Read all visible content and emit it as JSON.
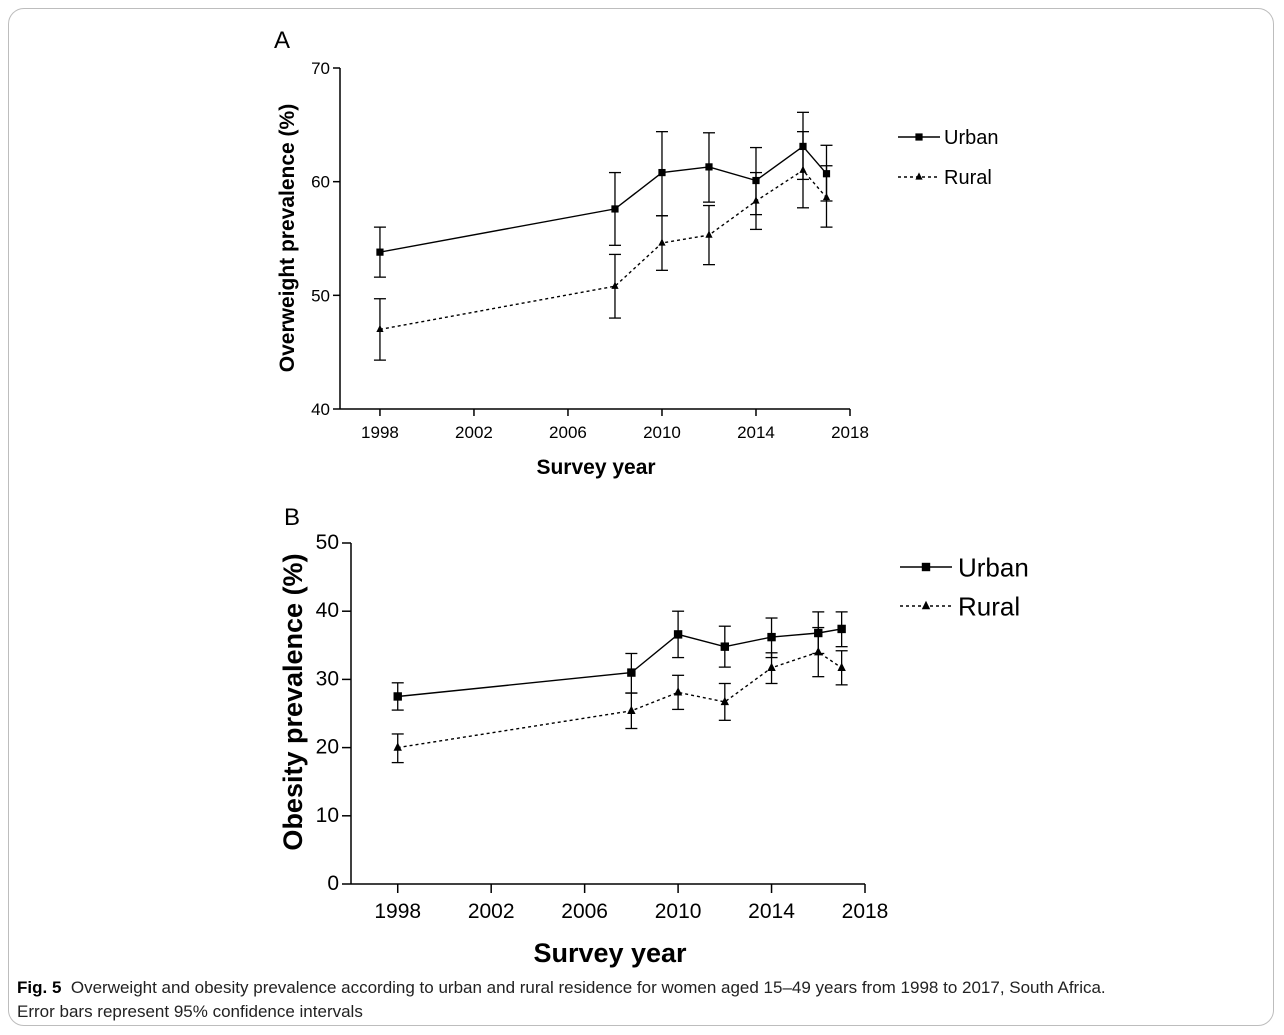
{
  "caption": {
    "label": "Fig. 5",
    "line1": "Overweight and obesity prevalence according to urban and rural residence for women aged 15–49 years from 1998 to 2017, South Africa.",
    "line2": "Error bars represent 95% confidence intervals"
  },
  "colors": {
    "line": "#000000",
    "frame": "#bdbdbd"
  },
  "chart_data": [
    {
      "type": "line",
      "panel": "A",
      "xlabel": "Survey year",
      "ylabel": "Overweight prevalence (%)",
      "xlim": [
        1996,
        2018
      ],
      "ylim": [
        40,
        70
      ],
      "xticks": [
        1998,
        2002,
        2006,
        2010,
        2014,
        2018
      ],
      "yticks": [
        40,
        50,
        60,
        70
      ],
      "legend_position": "right",
      "series": [
        {
          "name": "Urban",
          "marker": "square",
          "style": "solid",
          "x": [
            1998,
            2008,
            2010,
            2012,
            2014,
            2016,
            2017
          ],
          "y": [
            53.8,
            57.6,
            60.8,
            61.3,
            60.1,
            63.1,
            60.7
          ],
          "lower": [
            51.6,
            54.4,
            57.0,
            58.2,
            57.1,
            60.2,
            58.3
          ],
          "upper": [
            56.0,
            60.8,
            64.4,
            64.3,
            63.0,
            66.1,
            63.2
          ]
        },
        {
          "name": "Rural",
          "marker": "triangle",
          "style": "dotted",
          "x": [
            1998,
            2008,
            2010,
            2012,
            2014,
            2016,
            2017
          ],
          "y": [
            47.0,
            50.8,
            54.6,
            55.3,
            58.3,
            61.0,
            58.6
          ],
          "lower": [
            44.3,
            48.0,
            52.2,
            52.7,
            55.8,
            57.7,
            56.0
          ],
          "upper": [
            49.7,
            53.6,
            57.0,
            57.9,
            60.8,
            64.4,
            61.4
          ]
        }
      ]
    },
    {
      "type": "line",
      "panel": "B",
      "xlabel": "Survey year",
      "ylabel": "Obesity prevalence (%)",
      "xlim": [
        1996,
        2018
      ],
      "ylim": [
        0,
        50
      ],
      "xticks": [
        1998,
        2002,
        2006,
        2010,
        2014,
        2018
      ],
      "yticks": [
        0,
        10,
        20,
        30,
        40,
        50
      ],
      "legend_position": "right",
      "series": [
        {
          "name": "Urban",
          "marker": "square",
          "style": "solid",
          "x": [
            1998,
            2008,
            2010,
            2012,
            2014,
            2016,
            2017
          ],
          "y": [
            27.5,
            31.0,
            36.6,
            34.8,
            36.2,
            36.8,
            37.4
          ],
          "lower": [
            25.5,
            28.0,
            33.2,
            31.8,
            33.2,
            33.8,
            34.8
          ],
          "upper": [
            29.5,
            33.8,
            40.0,
            37.8,
            39.0,
            39.9,
            39.9
          ]
        },
        {
          "name": "Rural",
          "marker": "triangle",
          "style": "dotted",
          "x": [
            1998,
            2008,
            2010,
            2012,
            2014,
            2016,
            2017
          ],
          "y": [
            20.0,
            25.4,
            28.1,
            26.7,
            31.7,
            34.0,
            31.7
          ],
          "lower": [
            17.8,
            22.8,
            25.6,
            24.0,
            29.4,
            30.4,
            29.2
          ],
          "upper": [
            22.0,
            28.0,
            30.6,
            29.4,
            33.9,
            37.6,
            34.2
          ]
        }
      ]
    }
  ]
}
